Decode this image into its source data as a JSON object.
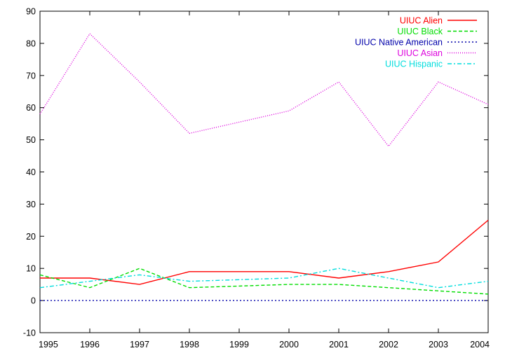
{
  "chart_data": {
    "type": "line",
    "title": "",
    "xlabel": "",
    "ylabel": "",
    "x": [
      1995,
      1996,
      1997,
      1998,
      1999,
      2000,
      2001,
      2002,
      2003,
      2004
    ],
    "xlim": [
      1995,
      2004
    ],
    "ylim": [
      -10,
      90
    ],
    "yticks": [
      -10,
      0,
      10,
      20,
      30,
      40,
      50,
      60,
      70,
      80,
      90
    ],
    "xticks": [
      1995,
      1996,
      1997,
      1998,
      1999,
      2000,
      2001,
      2002,
      2003,
      2004
    ],
    "grid": false,
    "legend_position": "top-right",
    "series": [
      {
        "name": "UIUC Alien",
        "color": "#ff0000",
        "dash": "solid",
        "values": [
          7,
          7,
          5,
          9,
          9,
          9,
          7,
          9,
          12,
          25
        ]
      },
      {
        "name": "UIUC Black",
        "color": "#00dd00",
        "dash": "dashed",
        "values": [
          8,
          4,
          10,
          4,
          4.5,
          5,
          5,
          4,
          3,
          2
        ]
      },
      {
        "name": "UIUC Native American",
        "color": "#0000aa",
        "dash": "dotted",
        "values": [
          0,
          0,
          0,
          0,
          0,
          0,
          0,
          0,
          0,
          0
        ]
      },
      {
        "name": "UIUC Asian",
        "color": "#dd00dd",
        "dash": "fine-dotted",
        "values": [
          58,
          83,
          68,
          52,
          55.5,
          59,
          68,
          48,
          68,
          61
        ]
      },
      {
        "name": "UIUC Hispanic",
        "color": "#00dddd",
        "dash": "dash-dot",
        "values": [
          4,
          6,
          8,
          6,
          6.5,
          7,
          10,
          7,
          4,
          6
        ]
      }
    ]
  }
}
